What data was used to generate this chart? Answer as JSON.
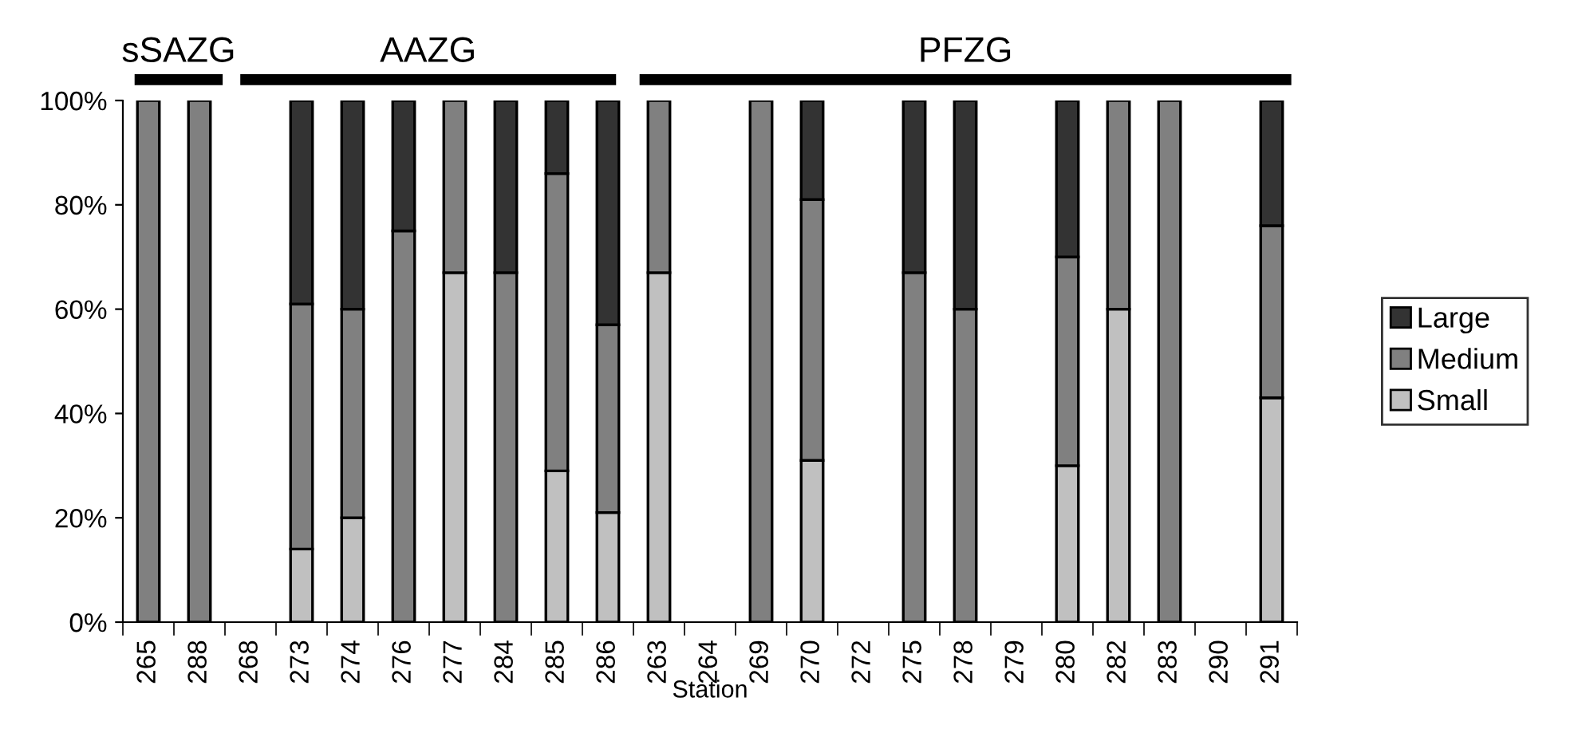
{
  "chart_data": {
    "type": "bar",
    "stacked": true,
    "xlabel": "Station",
    "categories": [
      "265",
      "288",
      "268",
      "273",
      "274",
      "276",
      "277",
      "284",
      "285",
      "286",
      "263",
      "264",
      "269",
      "270",
      "272",
      "275",
      "278",
      "279",
      "280",
      "282",
      "283",
      "290",
      "291"
    ],
    "series": [
      {
        "name": "Small",
        "color": "#c0c0c0",
        "values": [
          0,
          0,
          0,
          14,
          20,
          0,
          67,
          0,
          29,
          21,
          67,
          0,
          0,
          31,
          0,
          0,
          0,
          0,
          30,
          60,
          0,
          0,
          43
        ]
      },
      {
        "name": "Medium",
        "color": "#808080",
        "values": [
          100,
          100,
          0,
          47,
          40,
          75,
          33,
          67,
          57,
          36,
          33,
          0,
          100,
          50,
          0,
          67,
          60,
          0,
          40,
          40,
          100,
          0,
          33
        ]
      },
      {
        "name": "Large",
        "color": "#333333",
        "values": [
          0,
          0,
          0,
          39,
          40,
          25,
          0,
          33,
          14,
          43,
          0,
          0,
          0,
          19,
          0,
          33,
          40,
          0,
          30,
          0,
          0,
          0,
          24
        ]
      }
    ],
    "ylim": [
      0,
      100
    ],
    "yticks": [
      {
        "value": 0,
        "label": "0%"
      },
      {
        "value": 20,
        "label": "20%"
      },
      {
        "value": 40,
        "label": "40%"
      },
      {
        "value": 60,
        "label": "60%"
      },
      {
        "value": 80,
        "label": "80%"
      },
      {
        "value": 100,
        "label": "100%"
      }
    ],
    "grid": false,
    "legend": "right",
    "annotations": [
      "sSAZG",
      "AAZG",
      "PFZG"
    ]
  }
}
